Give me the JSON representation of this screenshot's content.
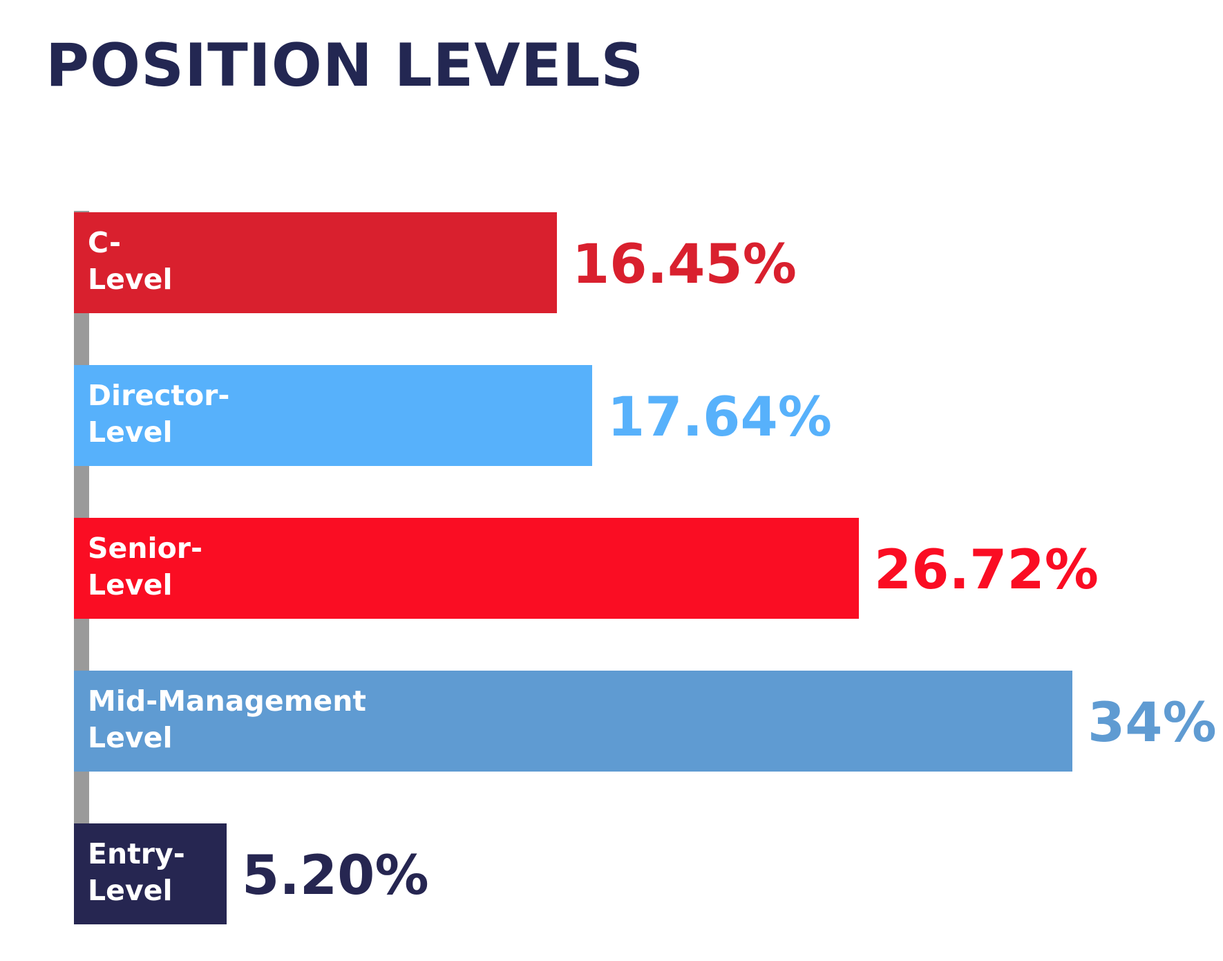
{
  "chart_data": {
    "type": "bar",
    "orientation": "horizontal",
    "title": "POSITION LEVELS",
    "categories": [
      "C-\nLevel",
      "Director-\nLevel",
      "Senior-\nLevel",
      "Mid-Management\nLevel",
      "Entry-\nLevel"
    ],
    "values": [
      16.45,
      17.64,
      26.72,
      34,
      5.2
    ],
    "value_labels": [
      "16.45%",
      "17.64%",
      "26.72%",
      "34%",
      "5.20%"
    ],
    "colors": [
      "#d9202e",
      "#57b1fb",
      "#fa0d23",
      "#5f9bd2",
      "#262651"
    ],
    "xlim": [
      0,
      34
    ],
    "grid": false,
    "legend": "none"
  }
}
